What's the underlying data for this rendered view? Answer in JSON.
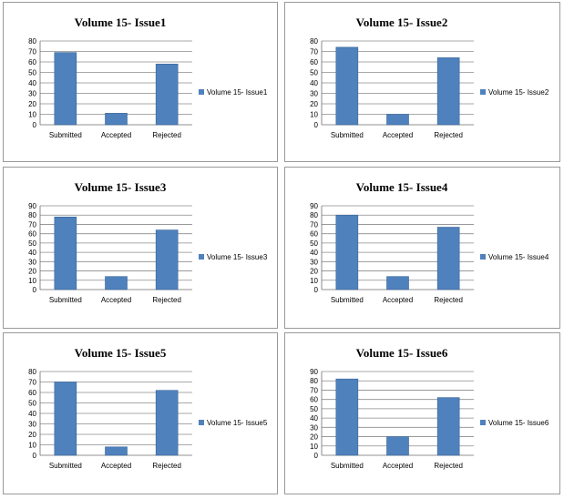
{
  "colors": {
    "bar": "#4F81BD",
    "bar_edge": "#3A6595",
    "grid": "#8C8C8C",
    "axis": "#6E6E6E"
  },
  "chart_data": [
    {
      "type": "bar",
      "title": "Volume 15- Issue1",
      "categories": [
        "Submitted",
        "Accepted",
        "Rejected"
      ],
      "series": [
        {
          "name": "Volume 15- Issue1",
          "values": [
            69,
            11,
            58
          ]
        }
      ],
      "ylim": [
        0,
        80
      ],
      "yticks": [
        0,
        10,
        20,
        30,
        40,
        50,
        60,
        70,
        80
      ],
      "grid": true,
      "legend": "right"
    },
    {
      "type": "bar",
      "title": "Volume 15- Issue2",
      "categories": [
        "Submitted",
        "Accepted",
        "Rejected"
      ],
      "series": [
        {
          "name": "Volume 15- Issue2",
          "values": [
            74,
            10,
            64
          ]
        }
      ],
      "ylim": [
        0,
        80
      ],
      "yticks": [
        0,
        10,
        20,
        30,
        40,
        50,
        60,
        70,
        80
      ],
      "grid": true,
      "legend": "right"
    },
    {
      "type": "bar",
      "title": "Volume 15- Issue3",
      "categories": [
        "Submitted",
        "Accepted",
        "Rejected"
      ],
      "series": [
        {
          "name": "Volume 15- Issue3",
          "values": [
            78,
            14,
            64
          ]
        }
      ],
      "ylim": [
        0,
        90
      ],
      "yticks": [
        0,
        10,
        20,
        30,
        40,
        50,
        60,
        70,
        80,
        90
      ],
      "grid": true,
      "legend": "right"
    },
    {
      "type": "bar",
      "title": "Volume 15- Issue4",
      "categories": [
        "Submitted",
        "Accepted",
        "Rejected"
      ],
      "series": [
        {
          "name": "Volume 15- Issue4",
          "values": [
            80,
            14,
            67
          ]
        }
      ],
      "ylim": [
        0,
        90
      ],
      "yticks": [
        0,
        10,
        20,
        30,
        40,
        50,
        60,
        70,
        80,
        90
      ],
      "grid": true,
      "legend": "right"
    },
    {
      "type": "bar",
      "title": "Volume 15- Issue5",
      "categories": [
        "Submitted",
        "Accepted",
        "Rejected"
      ],
      "series": [
        {
          "name": "Volume 15- Issue5",
          "values": [
            70,
            8,
            62
          ]
        }
      ],
      "ylim": [
        0,
        80
      ],
      "yticks": [
        0,
        10,
        20,
        30,
        40,
        50,
        60,
        70,
        80
      ],
      "grid": true,
      "legend": "right"
    },
    {
      "type": "bar",
      "title": "Volume 15- Issue6",
      "categories": [
        "Submitted",
        "Accepted",
        "Rejected"
      ],
      "series": [
        {
          "name": "Volume 15- Issue6",
          "values": [
            82,
            20,
            62
          ]
        }
      ],
      "ylim": [
        0,
        90
      ],
      "yticks": [
        0,
        10,
        20,
        30,
        40,
        50,
        60,
        70,
        80,
        90
      ],
      "grid": true,
      "legend": "right"
    }
  ]
}
